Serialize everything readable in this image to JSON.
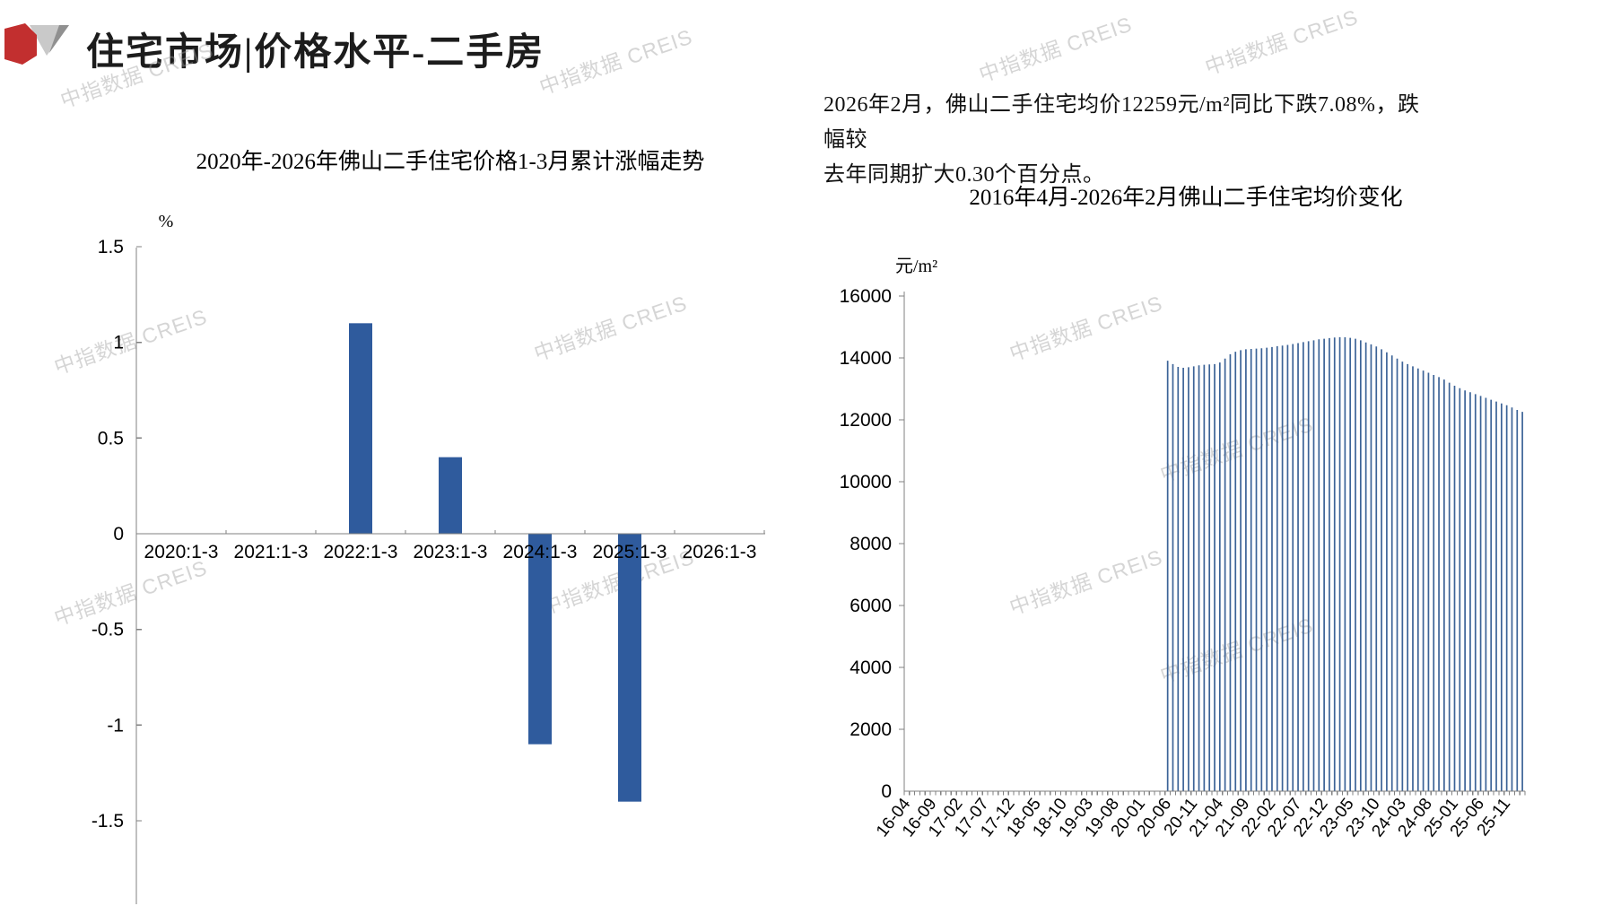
{
  "page": {
    "title": "住宅市场|价格水平-二手房",
    "watermark": "中指数据 CREIS",
    "commentary_line1": "2026年2月，佛山二手住宅均价12259元/m²同比下跌7.08%，跌幅较",
    "commentary_line2": "去年同期扩大0.30个百分点。"
  },
  "colors": {
    "logo_red": "#c22f2f",
    "logo_gray_light": "#c9c9c9",
    "logo_gray_dark": "#909090",
    "axis_gray": "#808080",
    "left_bar_blue": "#2f5b9d",
    "right_bar_blue": "#3c6397"
  },
  "chart_data": [
    {
      "type": "bar",
      "title": "2020年-2026年佛山二手住宅价格1-3月累计涨幅走势",
      "unit_label": "%",
      "categories": [
        "2020:1-3",
        "2021:1-3",
        "2022:1-3",
        "2023:1-3",
        "2024:1-3",
        "2025:1-3",
        "2026:1-3"
      ],
      "values": [
        0,
        0,
        1.1,
        0.4,
        -1.1,
        -1.4,
        null
      ],
      "ylim": [
        -2,
        1.5
      ],
      "yticks": [
        1.5,
        1,
        0.5,
        0,
        -0.5,
        -1,
        -1.5
      ],
      "grid": false,
      "legend": "none",
      "bar_color": "#2f5b9d"
    },
    {
      "type": "bar",
      "title": "2016年4月-2026年2月佛山二手住宅均价变化",
      "unit_label": "元/m²",
      "x_range_start": "2016-04",
      "x_range_end": "2026-02",
      "months_total": 119,
      "x_tick_interval_months": 5,
      "x_tick_labels": [
        "16-04",
        "16-09",
        "17-02",
        "17-07",
        "17-12",
        "18-05",
        "18-10",
        "19-03",
        "19-08",
        "20-01",
        "20-06",
        "20-11",
        "21-04",
        "21-09",
        "22-02",
        "22-07",
        "22-12",
        "23-05",
        "23-10",
        "24-03",
        "24-08",
        "25-01",
        "25-06",
        "25-11"
      ],
      "series_start": "2020-06",
      "series_start_index": 50,
      "values": [
        13910,
        13800,
        13710,
        13680,
        13700,
        13730,
        13760,
        13780,
        13790,
        13800,
        13850,
        13980,
        14120,
        14200,
        14250,
        14280,
        14290,
        14300,
        14310,
        14330,
        14350,
        14380,
        14400,
        14420,
        14450,
        14480,
        14510,
        14540,
        14570,
        14600,
        14620,
        14640,
        14660,
        14670,
        14665,
        14650,
        14620,
        14570,
        14500,
        14440,
        14370,
        14280,
        14180,
        14080,
        13980,
        13880,
        13800,
        13730,
        13660,
        13590,
        13520,
        13450,
        13380,
        13300,
        13200,
        13100,
        13020,
        12950,
        12890,
        12830,
        12770,
        12710,
        12650,
        12590,
        12530,
        12470,
        12400,
        12320,
        12259
      ],
      "last_value": 12259,
      "ylim": [
        0,
        16000
      ],
      "yticks": [
        0,
        2000,
        4000,
        6000,
        8000,
        10000,
        12000,
        14000,
        16000
      ],
      "grid": false,
      "legend": "none",
      "bar_color": "#3c6397"
    }
  ]
}
